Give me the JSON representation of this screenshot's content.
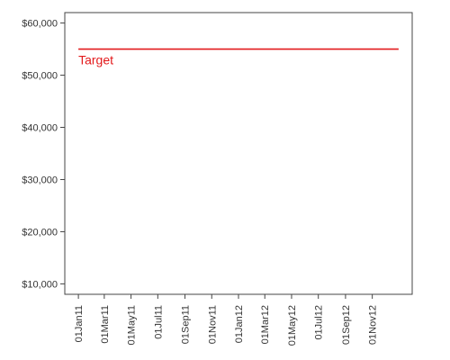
{
  "chart_data": {
    "type": "line",
    "title": "",
    "xlabel": "",
    "ylabel": "",
    "x_ticks": [
      "01Jan11",
      "01Mar11",
      "01May11",
      "01Jul11",
      "01Sep11",
      "01Nov11",
      "01Jan12",
      "01Mar12",
      "01May12",
      "01Jul12",
      "01Sep12",
      "01Nov12"
    ],
    "x_tick_dates": [
      "2011-01-01",
      "2011-03-01",
      "2011-05-01",
      "2011-07-01",
      "2011-09-01",
      "2011-11-01",
      "2012-01-01",
      "2012-03-01",
      "2012-05-01",
      "2012-07-01",
      "2012-09-01",
      "2012-11-01"
    ],
    "xlim": [
      "2010-12-01",
      "2013-01-31"
    ],
    "y_ticks": [
      {
        "value": 10000,
        "label": "$10,000"
      },
      {
        "value": 20000,
        "label": "$20,000"
      },
      {
        "value": 30000,
        "label": "$30,000"
      },
      {
        "value": 40000,
        "label": "$40,000"
      },
      {
        "value": 50000,
        "label": "$50,000"
      },
      {
        "value": 60000,
        "label": "$60,000"
      }
    ],
    "ylim": [
      8000,
      62000
    ],
    "grid": false,
    "series": [
      {
        "x": [
          "2011-01-01",
          "2012-12-31"
        ],
        "values": [
          55000,
          55000
        ],
        "color": "#e31a1c"
      }
    ],
    "annotations": [
      {
        "text": "Target",
        "x": "2011-01-01",
        "y": 55000,
        "color": "#e31a1c"
      }
    ]
  }
}
